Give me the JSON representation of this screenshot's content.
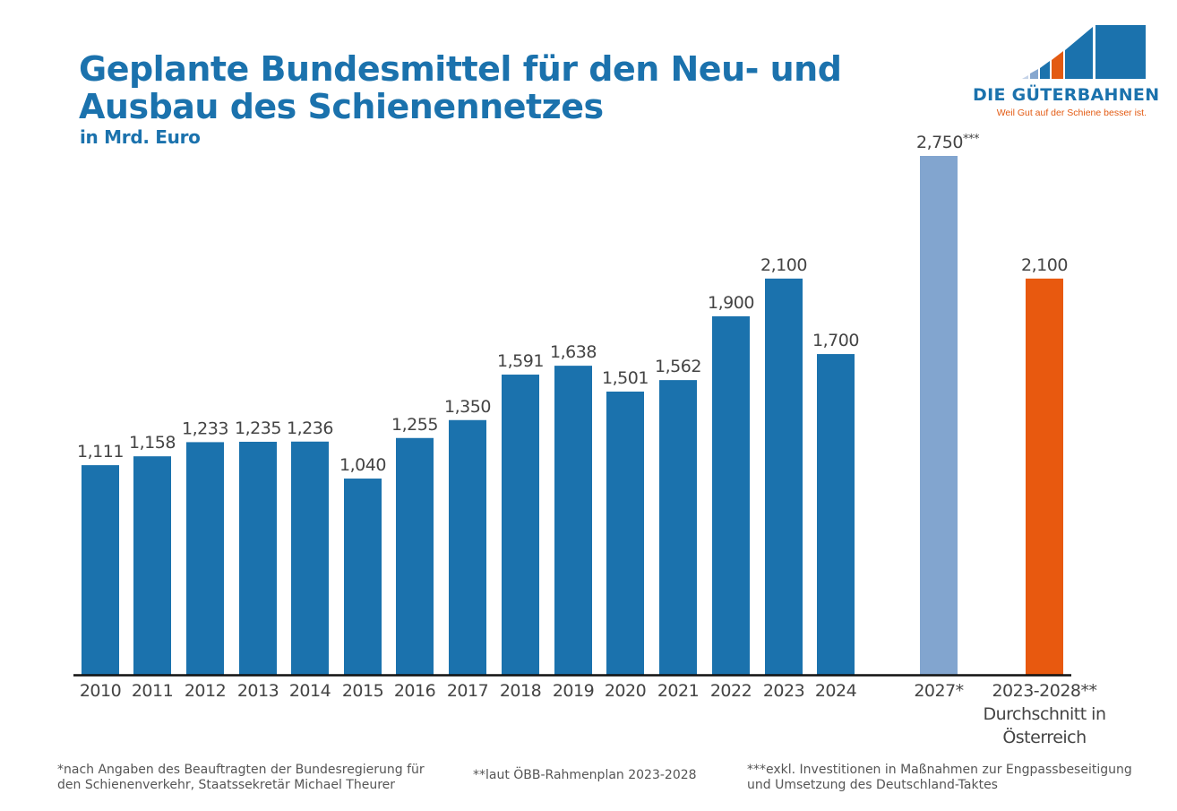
{
  "header": {
    "title_line1": "Geplante Bundesmittel für den Neu- und",
    "title_line2": "Ausbau des Schienennetzes",
    "subtitle": "in Mrd. Euro"
  },
  "logo": {
    "name": "DIE GÜTERBAHNEN",
    "tagline": "Weil Gut auf der Schiene besser ist.",
    "colors": [
      "#c5d3e8",
      "#86a7cf",
      "#1b72ad",
      "#e35a12",
      "#1b72ad",
      "#1b72ad"
    ]
  },
  "colors": {
    "primary": "#1b72ad",
    "light": "#82a5cf",
    "accent": "#e8590f",
    "label_text": "#444444",
    "axis": "#111111"
  },
  "chart_data": {
    "type": "bar",
    "title": "Geplante Bundesmittel für den Neu- und Ausbau des Schienennetzes",
    "subtitle": "in Mrd. Euro",
    "xlabel": "",
    "ylabel": "",
    "ylim": [
      0,
      2.9
    ],
    "grid": false,
    "legend": "none",
    "categories": [
      "2010",
      "2011",
      "2012",
      "2013",
      "2014",
      "2015",
      "2016",
      "2017",
      "2018",
      "2019",
      "2020",
      "2021",
      "2022",
      "2023",
      "2024",
      "2027*",
      "2023-2028**"
    ],
    "category_sublabels": {
      "2023-2028**": [
        "Durchschnitt in",
        "Österreich"
      ]
    },
    "values": [
      1.111,
      1.158,
      1.233,
      1.235,
      1.236,
      1.04,
      1.255,
      1.35,
      1.591,
      1.638,
      1.501,
      1.562,
      1.9,
      2.1,
      1.7,
      2.75,
      2.1
    ],
    "data_labels": [
      "1,111",
      "1,158",
      "1,233",
      "1,235",
      "1,236",
      "1,040",
      "1,255",
      "1,350",
      "1,591",
      "1,638",
      "1,501",
      "1,562",
      "1,900",
      "2,100",
      "1,700",
      "2,750***",
      "2,100"
    ],
    "bar_colors": [
      "#1b72ad",
      "#1b72ad",
      "#1b72ad",
      "#1b72ad",
      "#1b72ad",
      "#1b72ad",
      "#1b72ad",
      "#1b72ad",
      "#1b72ad",
      "#1b72ad",
      "#1b72ad",
      "#1b72ad",
      "#1b72ad",
      "#1b72ad",
      "#1b72ad",
      "#82a5cf",
      "#e8590f"
    ]
  },
  "footnotes": {
    "note1": "*nach Angaben des Beauftragten der Bundesregierung für den Schienenverkehr, Staatssekretär Michael Theurer",
    "note2": "**laut ÖBB-Rahmenplan 2023-2028",
    "note3": "***exkl. Investitionen in Maßnahmen zur Engpassbeseitigung und Umsetzung des Deutschland-Taktes"
  }
}
